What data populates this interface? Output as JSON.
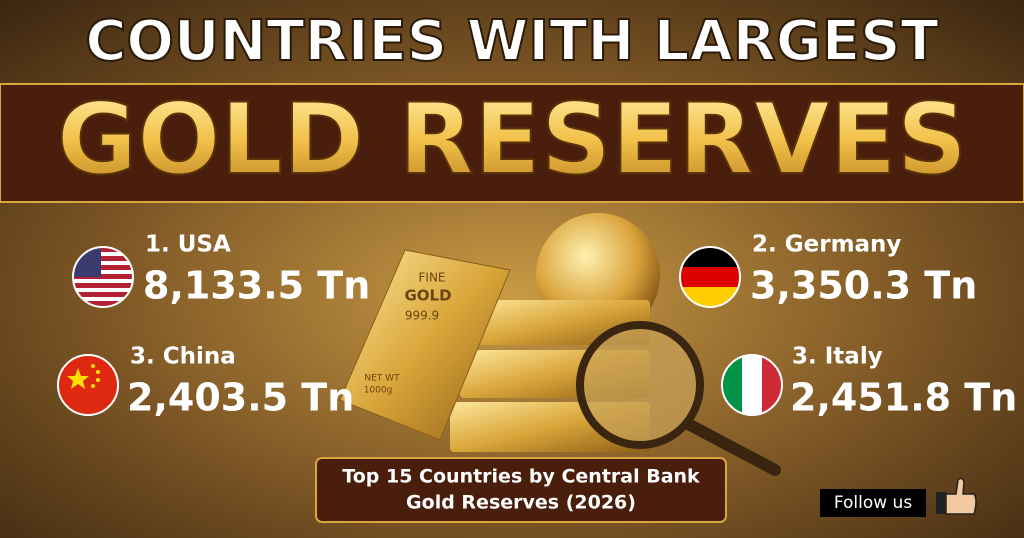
{
  "header": {
    "title_line1": "COUNTRIES WITH LARGEST",
    "title_line2": "GOLD RESERVES"
  },
  "items": [
    {
      "label": "1. USA",
      "value": "8,133.5 Tn"
    },
    {
      "label": "2. Germany",
      "value": "3,350.3 Tn"
    },
    {
      "label": "3. China",
      "value": "2,403.5 Tn"
    },
    {
      "label": "3. Italy",
      "value": "2,451.8 Tn"
    }
  ],
  "gold_bar": {
    "lines": [
      "FINE",
      "GOLD",
      "999.9"
    ],
    "weight": [
      "NET WT",
      "1000g"
    ]
  },
  "caption": {
    "lines": [
      "Top 15 Countries by Central Bank",
      "Gold Reserves (2026)"
    ]
  },
  "follow": "Follow us"
}
